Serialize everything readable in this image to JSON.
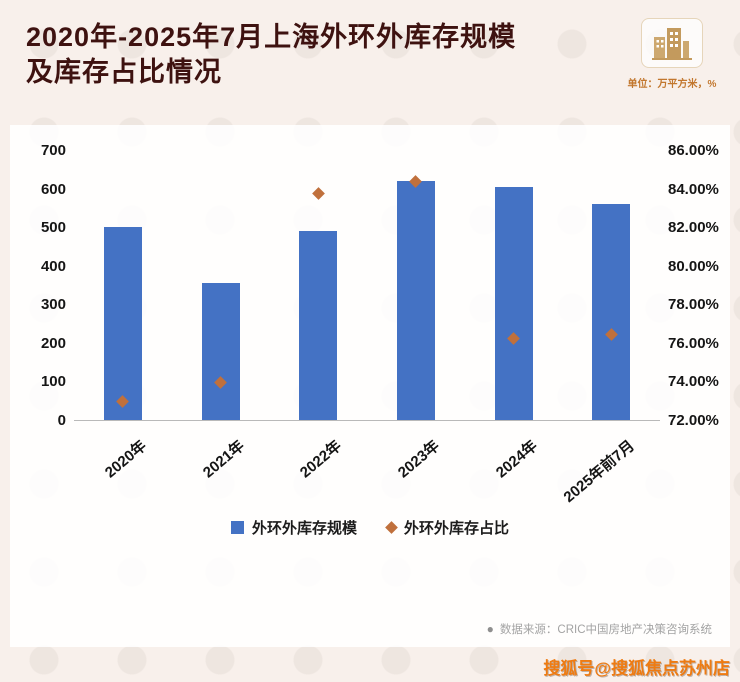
{
  "header": {
    "title_line1": "2020年-2025年7月上海外环外库存规模",
    "title_line2": "及库存占比情况",
    "unit": "单位：万平方米，%"
  },
  "chart_data": {
    "type": "bar",
    "categories": [
      "2020年",
      "2021年",
      "2022年",
      "2023年",
      "2024年",
      "2025年前7月"
    ],
    "series": [
      {
        "name": "外环外库存规模",
        "type": "bar",
        "axis": "left",
        "color": "#4472c4",
        "values": [
          500,
          355,
          490,
          620,
          605,
          560
        ]
      },
      {
        "name": "外环外库存占比",
        "type": "scatter",
        "axis": "right",
        "color": "#c0703c",
        "values": [
          73.0,
          74.0,
          83.8,
          84.4,
          76.3,
          76.5
        ]
      }
    ],
    "left_axis": {
      "min": 0,
      "max": 700,
      "step": 100
    },
    "right_axis": {
      "min": 72,
      "max": 86,
      "step": 2,
      "format": "percent2"
    },
    "grid": false,
    "legend_position": "bottom"
  },
  "footer": {
    "bullet": "●",
    "source": "数据来源：CRIC中国房地产决策咨询系统"
  },
  "watermark": {
    "text": "搜狐号@搜狐焦点苏州店"
  },
  "colors": {
    "title_color": "#3e1210",
    "bar_blue": "#4472c4",
    "marker_orange": "#c0703c",
    "unit_orange": "#c2772e",
    "watermark_orange": "#ee7b12",
    "source_gray": "#a3a3a3"
  }
}
